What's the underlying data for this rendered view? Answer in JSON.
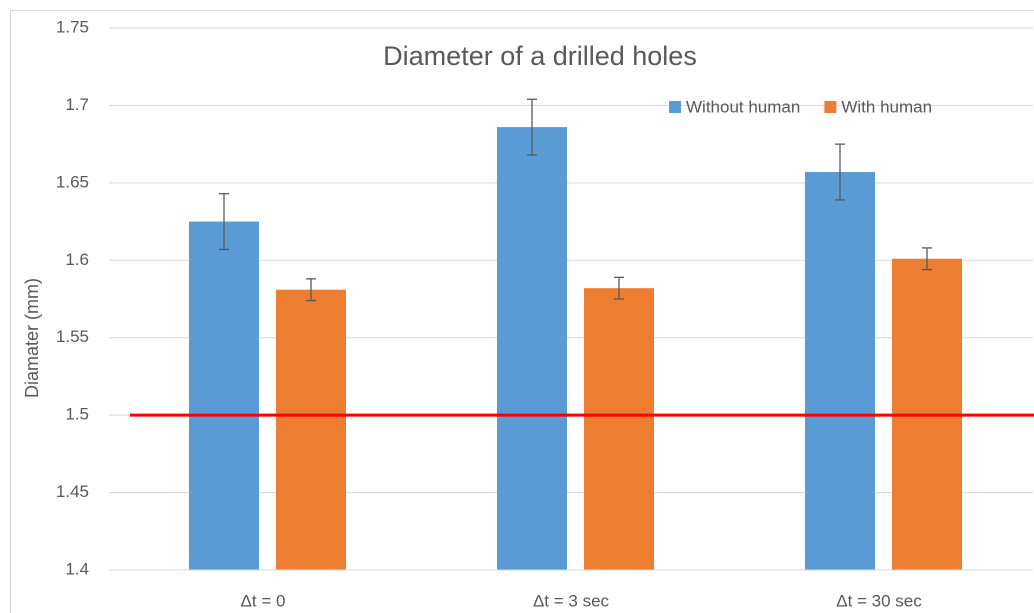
{
  "chart_data": {
    "type": "bar",
    "title": "Diameter of a drilled holes",
    "y_label": "Diamater (mm)",
    "categories": [
      "Δt = 0",
      "Δt = 3 sec",
      "Δt = 30 sec"
    ],
    "series": [
      {
        "name": "Without human",
        "color": "#5b9bd5",
        "values": [
          1.625,
          1.686,
          1.657
        ],
        "errors": [
          0.018,
          0.018,
          0.018
        ]
      },
      {
        "name": "With human",
        "color": "#ed7d31",
        "values": [
          1.581,
          1.582,
          1.601
        ],
        "errors": [
          0.007,
          0.007,
          0.007
        ]
      }
    ],
    "ylim": [
      1.4,
      1.75
    ],
    "yticks": [
      1.4,
      1.45,
      1.5,
      1.55,
      1.6,
      1.65,
      1.7,
      1.75
    ],
    "grid": true,
    "legend": "top-right",
    "reference_line": {
      "value": 1.5,
      "color": "#ff0000"
    }
  }
}
